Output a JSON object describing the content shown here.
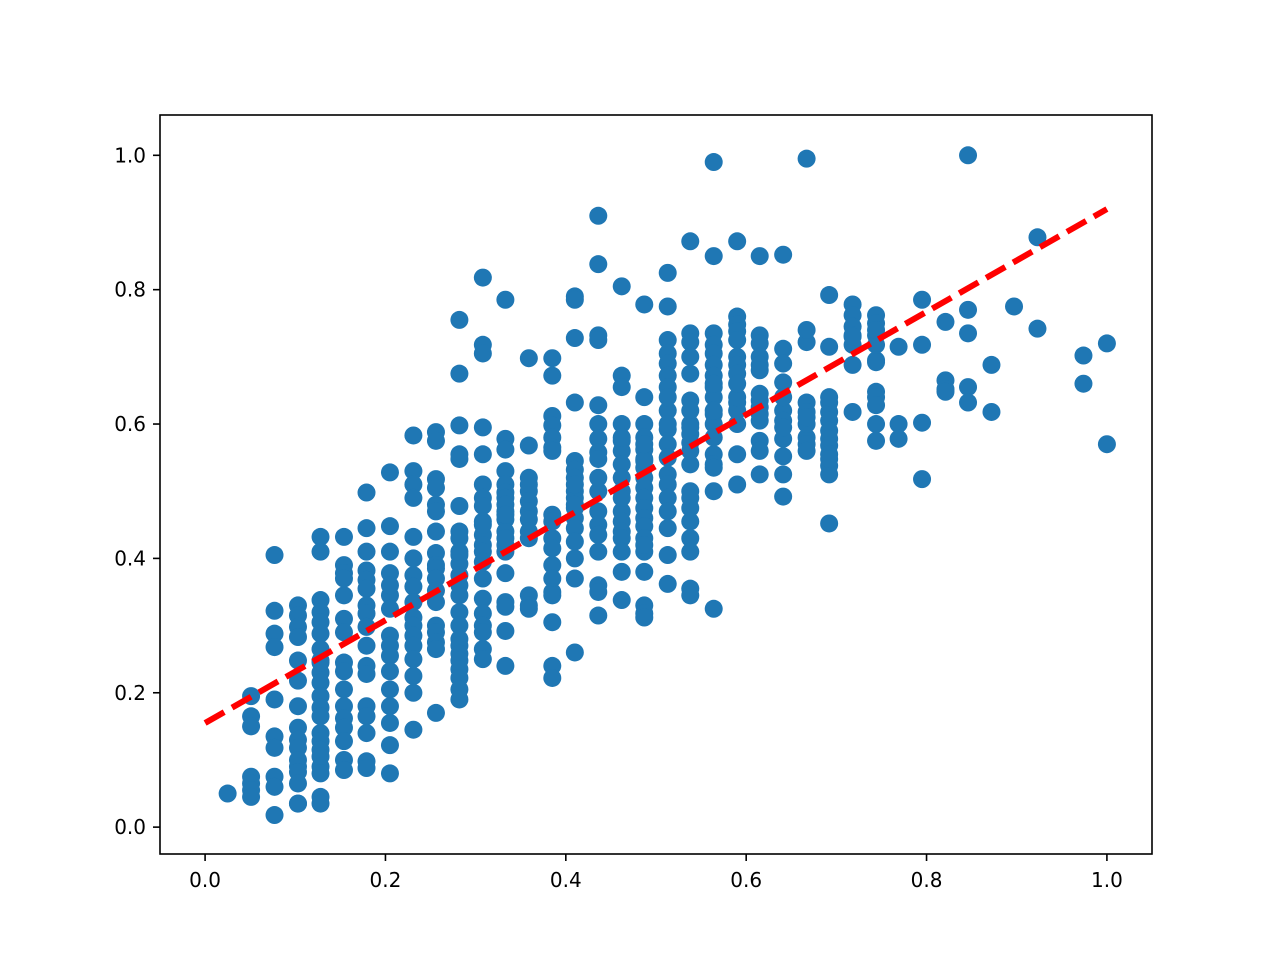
{
  "chart_data": {
    "type": "scatter",
    "title": "",
    "xlabel": "",
    "ylabel": "",
    "xlim": [
      -0.05,
      1.05
    ],
    "ylim": [
      -0.04,
      1.06
    ],
    "xticks": [
      0.0,
      0.2,
      0.4,
      0.6,
      0.8,
      1.0
    ],
    "yticks": [
      0.0,
      0.2,
      0.4,
      0.6,
      0.8,
      1.0
    ],
    "xtick_labels": [
      "0.0",
      "0.2",
      "0.4",
      "0.6",
      "0.8",
      "1.0"
    ],
    "ytick_labels": [
      "0.0",
      "0.2",
      "0.4",
      "0.6",
      "0.8",
      "1.0"
    ],
    "grid": false,
    "marker_color": "#1f77b4",
    "series": [
      {
        "x": [
          0.025,
          0.051,
          0.051,
          0.051,
          0.051,
          0.051,
          0.051,
          0.051,
          0.077,
          0.077,
          0.077,
          0.077,
          0.077,
          0.077,
          0.077,
          0.077,
          0.077,
          0.077,
          0.103,
          0.103,
          0.103,
          0.103,
          0.103,
          0.103,
          0.103,
          0.103,
          0.103,
          0.103,
          0.103,
          0.103,
          0.103,
          0.103,
          0.103,
          0.103,
          0.128,
          0.128,
          0.128,
          0.128,
          0.128,
          0.128,
          0.128,
          0.128,
          0.128,
          0.128,
          0.128,
          0.128,
          0.128,
          0.128,
          0.128,
          0.128,
          0.128,
          0.128,
          0.128,
          0.128,
          0.128,
          0.128,
          0.154,
          0.154,
          0.154,
          0.154,
          0.154,
          0.154,
          0.154,
          0.154,
          0.154,
          0.154,
          0.154,
          0.154,
          0.154,
          0.154,
          0.154,
          0.154,
          0.179,
          0.179,
          0.179,
          0.179,
          0.179,
          0.179,
          0.179,
          0.179,
          0.179,
          0.179,
          0.179,
          0.179,
          0.179,
          0.179,
          0.179,
          0.179,
          0.179,
          0.205,
          0.205,
          0.205,
          0.205,
          0.205,
          0.205,
          0.205,
          0.205,
          0.205,
          0.205,
          0.205,
          0.205,
          0.205,
          0.205,
          0.205,
          0.205,
          0.231,
          0.231,
          0.231,
          0.231,
          0.231,
          0.231,
          0.231,
          0.231,
          0.231,
          0.231,
          0.231,
          0.231,
          0.231,
          0.231,
          0.231,
          0.231,
          0.231,
          0.256,
          0.256,
          0.256,
          0.256,
          0.256,
          0.256,
          0.256,
          0.256,
          0.256,
          0.256,
          0.256,
          0.256,
          0.256,
          0.256,
          0.256,
          0.256,
          0.256,
          0.256,
          0.282,
          0.282,
          0.282,
          0.282,
          0.282,
          0.282,
          0.282,
          0.282,
          0.282,
          0.282,
          0.282,
          0.282,
          0.282,
          0.282,
          0.282,
          0.282,
          0.282,
          0.282,
          0.282,
          0.282,
          0.282,
          0.282,
          0.282,
          0.282,
          0.308,
          0.308,
          0.308,
          0.308,
          0.308,
          0.308,
          0.308,
          0.308,
          0.308,
          0.308,
          0.308,
          0.308,
          0.308,
          0.308,
          0.308,
          0.308,
          0.308,
          0.308,
          0.308,
          0.308,
          0.308,
          0.333,
          0.333,
          0.333,
          0.333,
          0.333,
          0.333,
          0.333,
          0.333,
          0.333,
          0.333,
          0.333,
          0.333,
          0.333,
          0.333,
          0.333,
          0.333,
          0.333,
          0.333,
          0.333,
          0.333,
          0.359,
          0.359,
          0.359,
          0.359,
          0.359,
          0.359,
          0.359,
          0.359,
          0.359,
          0.359,
          0.359,
          0.359,
          0.359,
          0.385,
          0.385,
          0.385,
          0.385,
          0.385,
          0.385,
          0.385,
          0.385,
          0.385,
          0.385,
          0.385,
          0.385,
          0.385,
          0.385,
          0.385,
          0.385,
          0.385,
          0.385,
          0.41,
          0.41,
          0.41,
          0.41,
          0.41,
          0.41,
          0.41,
          0.41,
          0.41,
          0.41,
          0.41,
          0.41,
          0.41,
          0.41,
          0.41,
          0.41,
          0.41,
          0.41,
          0.436,
          0.436,
          0.436,
          0.436,
          0.436,
          0.436,
          0.436,
          0.436,
          0.436,
          0.436,
          0.436,
          0.436,
          0.436,
          0.436,
          0.436,
          0.436,
          0.436,
          0.436,
          0.462,
          0.462,
          0.462,
          0.462,
          0.462,
          0.462,
          0.462,
          0.462,
          0.462,
          0.462,
          0.462,
          0.462,
          0.462,
          0.462,
          0.462,
          0.462,
          0.462,
          0.462,
          0.487,
          0.487,
          0.487,
          0.487,
          0.487,
          0.487,
          0.487,
          0.487,
          0.487,
          0.487,
          0.487,
          0.487,
          0.487,
          0.487,
          0.487,
          0.487,
          0.487,
          0.487,
          0.487,
          0.487,
          0.487,
          0.487,
          0.513,
          0.513,
          0.513,
          0.513,
          0.513,
          0.513,
          0.513,
          0.513,
          0.513,
          0.513,
          0.513,
          0.513,
          0.513,
          0.513,
          0.513,
          0.513,
          0.513,
          0.513,
          0.513,
          0.513,
          0.538,
          0.538,
          0.538,
          0.538,
          0.538,
          0.538,
          0.538,
          0.538,
          0.538,
          0.538,
          0.538,
          0.538,
          0.538,
          0.538,
          0.538,
          0.538,
          0.538,
          0.538,
          0.538,
          0.538,
          0.538,
          0.564,
          0.564,
          0.564,
          0.564,
          0.564,
          0.564,
          0.564,
          0.564,
          0.564,
          0.564,
          0.564,
          0.564,
          0.564,
          0.564,
          0.564,
          0.564,
          0.564,
          0.564,
          0.564,
          0.59,
          0.59,
          0.59,
          0.59,
          0.59,
          0.59,
          0.59,
          0.59,
          0.59,
          0.59,
          0.59,
          0.59,
          0.59,
          0.59,
          0.59,
          0.615,
          0.615,
          0.615,
          0.615,
          0.615,
          0.615,
          0.615,
          0.615,
          0.615,
          0.615,
          0.615,
          0.615,
          0.615,
          0.615,
          0.641,
          0.641,
          0.641,
          0.641,
          0.641,
          0.641,
          0.641,
          0.641,
          0.641,
          0.641,
          0.641,
          0.641,
          0.667,
          0.667,
          0.667,
          0.667,
          0.667,
          0.667,
          0.667,
          0.667,
          0.667,
          0.667,
          0.692,
          0.692,
          0.692,
          0.692,
          0.692,
          0.692,
          0.692,
          0.692,
          0.692,
          0.692,
          0.692,
          0.692,
          0.692,
          0.692,
          0.718,
          0.718,
          0.718,
          0.718,
          0.718,
          0.718,
          0.718,
          0.718,
          0.744,
          0.744,
          0.744,
          0.744,
          0.744,
          0.744,
          0.744,
          0.744,
          0.744,
          0.744,
          0.744,
          0.744,
          0.769,
          0.769,
          0.769,
          0.795,
          0.795,
          0.795,
          0.795,
          0.821,
          0.821,
          0.821,
          0.821,
          0.846,
          0.846,
          0.846,
          0.846,
          0.846,
          0.872,
          0.872,
          0.897,
          0.923,
          0.923,
          0.974,
          0.974,
          1.0,
          1.0
        ],
        "y": [
          0.05,
          0.195,
          0.165,
          0.15,
          0.075,
          0.065,
          0.055,
          0.045,
          0.405,
          0.322,
          0.288,
          0.268,
          0.19,
          0.135,
          0.118,
          0.075,
          0.06,
          0.018,
          0.33,
          0.315,
          0.298,
          0.283,
          0.248,
          0.218,
          0.18,
          0.148,
          0.13,
          0.118,
          0.1,
          0.09,
          0.082,
          0.065,
          0.035,
          0.035,
          0.432,
          0.41,
          0.338,
          0.32,
          0.305,
          0.288,
          0.265,
          0.248,
          0.23,
          0.215,
          0.195,
          0.178,
          0.165,
          0.14,
          0.128,
          0.115,
          0.105,
          0.09,
          0.08,
          0.045,
          0.035,
          0.245,
          0.432,
          0.39,
          0.378,
          0.345,
          0.31,
          0.29,
          0.245,
          0.232,
          0.205,
          0.18,
          0.162,
          0.148,
          0.128,
          0.1,
          0.085,
          0.37,
          0.498,
          0.445,
          0.41,
          0.382,
          0.368,
          0.355,
          0.33,
          0.318,
          0.298,
          0.27,
          0.24,
          0.228,
          0.18,
          0.165,
          0.14,
          0.098,
          0.088,
          0.528,
          0.448,
          0.41,
          0.378,
          0.345,
          0.325,
          0.285,
          0.27,
          0.255,
          0.232,
          0.205,
          0.18,
          0.155,
          0.122,
          0.08,
          0.36,
          0.583,
          0.53,
          0.51,
          0.49,
          0.432,
          0.4,
          0.375,
          0.358,
          0.335,
          0.312,
          0.3,
          0.285,
          0.27,
          0.25,
          0.225,
          0.2,
          0.145,
          0.588,
          0.575,
          0.518,
          0.505,
          0.48,
          0.47,
          0.408,
          0.39,
          0.385,
          0.37,
          0.352,
          0.335,
          0.3,
          0.29,
          0.275,
          0.265,
          0.17,
          0.44,
          0.755,
          0.675,
          0.598,
          0.555,
          0.548,
          0.478,
          0.44,
          0.43,
          0.405,
          0.392,
          0.375,
          0.36,
          0.345,
          0.32,
          0.3,
          0.28,
          0.27,
          0.258,
          0.248,
          0.235,
          0.222,
          0.205,
          0.19,
          0.41,
          0.818,
          0.718,
          0.705,
          0.595,
          0.555,
          0.51,
          0.49,
          0.478,
          0.455,
          0.435,
          0.42,
          0.41,
          0.395,
          0.37,
          0.34,
          0.318,
          0.3,
          0.29,
          0.265,
          0.25,
          0.45,
          0.785,
          0.578,
          0.562,
          0.53,
          0.51,
          0.498,
          0.49,
          0.47,
          0.458,
          0.44,
          0.42,
          0.41,
          0.378,
          0.335,
          0.328,
          0.292,
          0.24,
          0.48,
          0.465,
          0.43,
          0.698,
          0.568,
          0.51,
          0.5,
          0.485,
          0.47,
          0.458,
          0.44,
          0.43,
          0.345,
          0.33,
          0.325,
          0.52,
          0.698,
          0.672,
          0.612,
          0.598,
          0.58,
          0.565,
          0.465,
          0.455,
          0.43,
          0.415,
          0.39,
          0.37,
          0.35,
          0.345,
          0.305,
          0.24,
          0.222,
          0.56,
          0.79,
          0.785,
          0.728,
          0.632,
          0.545,
          0.532,
          0.52,
          0.5,
          0.49,
          0.475,
          0.46,
          0.445,
          0.425,
          0.4,
          0.37,
          0.26,
          0.51,
          0.48,
          0.91,
          0.838,
          0.732,
          0.725,
          0.628,
          0.6,
          0.578,
          0.558,
          0.548,
          0.5,
          0.47,
          0.45,
          0.435,
          0.41,
          0.36,
          0.35,
          0.315,
          0.52,
          0.805,
          0.672,
          0.655,
          0.6,
          0.575,
          0.56,
          0.54,
          0.52,
          0.5,
          0.47,
          0.455,
          0.44,
          0.43,
          0.41,
          0.38,
          0.338,
          0.58,
          0.49,
          0.778,
          0.64,
          0.6,
          0.58,
          0.562,
          0.548,
          0.535,
          0.52,
          0.505,
          0.49,
          0.475,
          0.46,
          0.448,
          0.43,
          0.41,
          0.38,
          0.33,
          0.318,
          0.312,
          0.42,
          0.545,
          0.57,
          0.825,
          0.775,
          0.725,
          0.705,
          0.69,
          0.672,
          0.655,
          0.62,
          0.592,
          0.57,
          0.55,
          0.525,
          0.51,
          0.49,
          0.47,
          0.445,
          0.405,
          0.362,
          0.6,
          0.64,
          0.872,
          0.735,
          0.722,
          0.7,
          0.675,
          0.635,
          0.6,
          0.585,
          0.572,
          0.54,
          0.5,
          0.49,
          0.475,
          0.455,
          0.43,
          0.41,
          0.355,
          0.345,
          0.62,
          0.595,
          0.56,
          0.99,
          0.85,
          0.735,
          0.718,
          0.705,
          0.688,
          0.672,
          0.655,
          0.64,
          0.615,
          0.6,
          0.555,
          0.54,
          0.535,
          0.5,
          0.325,
          0.58,
          0.66,
          0.62,
          0.872,
          0.76,
          0.748,
          0.738,
          0.725,
          0.7,
          0.688,
          0.675,
          0.632,
          0.62,
          0.6,
          0.555,
          0.51,
          0.64,
          0.66,
          0.85,
          0.732,
          0.72,
          0.7,
          0.688,
          0.635,
          0.605,
          0.575,
          0.56,
          0.525,
          0.68,
          0.615,
          0.625,
          0.645,
          0.852,
          0.712,
          0.69,
          0.662,
          0.62,
          0.605,
          0.578,
          0.552,
          0.525,
          0.492,
          0.64,
          0.595,
          0.995,
          0.722,
          0.632,
          0.618,
          0.58,
          0.57,
          0.56,
          0.74,
          0.6,
          0.61,
          0.792,
          0.715,
          0.632,
          0.618,
          0.605,
          0.59,
          0.578,
          0.568,
          0.555,
          0.538,
          0.525,
          0.452,
          0.64,
          0.548,
          0.778,
          0.762,
          0.745,
          0.732,
          0.718,
          0.688,
          0.618,
          0.73,
          0.762,
          0.75,
          0.732,
          0.718,
          0.695,
          0.692,
          0.648,
          0.64,
          0.628,
          0.6,
          0.575,
          0.74,
          0.715,
          0.6,
          0.578,
          0.785,
          0.718,
          0.602,
          0.518,
          0.752,
          0.665,
          0.652,
          0.648,
          1.0,
          0.77,
          0.735,
          0.655,
          0.632,
          0.688,
          0.618,
          0.775,
          0.878,
          0.742,
          0.702,
          0.66,
          0.72,
          0.57
        ]
      }
    ],
    "fit_line": {
      "x": [
        0.0,
        1.0
      ],
      "y": [
        0.155,
        0.92
      ],
      "color": "#ff0000",
      "style": "dashed"
    }
  }
}
